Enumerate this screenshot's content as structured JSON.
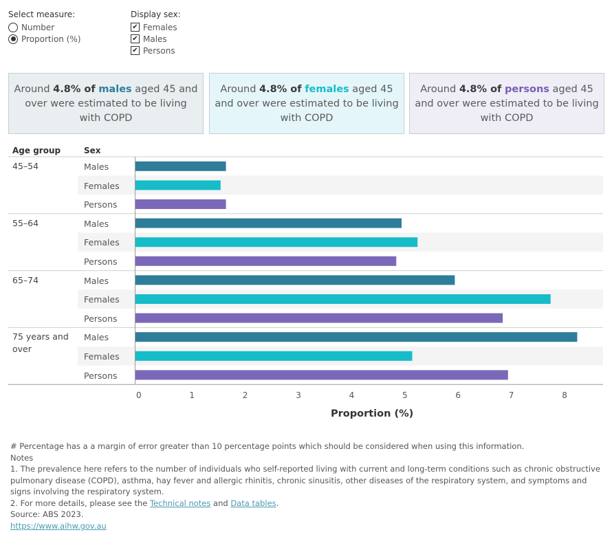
{
  "controls": {
    "measure": {
      "title": "Select measure:",
      "options": [
        {
          "label": "Number",
          "selected": false
        },
        {
          "label": "Proportion (%)",
          "selected": true
        }
      ]
    },
    "sex": {
      "title": "Display sex:",
      "options": [
        {
          "label": "Females",
          "checked": true
        },
        {
          "label": "Males",
          "checked": true
        },
        {
          "label": "Persons",
          "checked": true
        }
      ]
    }
  },
  "cards": [
    {
      "prefix": "Around ",
      "value": "4.8% of",
      "group": "males",
      "suffix": " aged 45 and over were estimated to be living with COPD",
      "bg": "#e9eef1",
      "accent": "#2e7d99"
    },
    {
      "prefix": "Around ",
      "value": "4.8% of",
      "group": "females",
      "suffix": " aged 45 and over were estimated to be living with COPD",
      "bg": "#e4f6f9",
      "accent": "#17bcc9"
    },
    {
      "prefix": "Around ",
      "value": "4.8% of",
      "group": "persons",
      "suffix": " aged 45 and over were estimated to be living with COPD",
      "bg": "#efedf6",
      "accent": "#7b5db0"
    }
  ],
  "table_headers": {
    "age_group": "Age group",
    "sex": "Sex"
  },
  "chart_data": {
    "type": "bar",
    "orientation": "horizontal",
    "xlabel": "Proportion (%)",
    "xlim": [
      0,
      8.8
    ],
    "x_ticks": [
      0,
      1,
      2,
      3,
      4,
      5,
      6,
      7,
      8
    ],
    "colors": {
      "Males": "#2e7d99",
      "Females": "#17bcc9",
      "Persons": "#7b68b8"
    },
    "groups": [
      {
        "age_group": "45–54",
        "bars": [
          {
            "sex": "Males",
            "value": 1.7
          },
          {
            "sex": "Females",
            "value": 1.6
          },
          {
            "sex": "Persons",
            "value": 1.7
          }
        ]
      },
      {
        "age_group": "55–64",
        "bars": [
          {
            "sex": "Males",
            "value": 5.0
          },
          {
            "sex": "Females",
            "value": 5.3
          },
          {
            "sex": "Persons",
            "value": 4.9
          }
        ]
      },
      {
        "age_group": "65–74",
        "bars": [
          {
            "sex": "Males",
            "value": 6.0
          },
          {
            "sex": "Females",
            "value": 7.8
          },
          {
            "sex": "Persons",
            "value": 6.9
          }
        ]
      },
      {
        "age_group": "75 years and over",
        "bars": [
          {
            "sex": "Males",
            "value": 8.3
          },
          {
            "sex": "Females",
            "value": 5.2
          },
          {
            "sex": "Persons",
            "value": 7.0
          }
        ]
      }
    ]
  },
  "notes": {
    "margin_note": "# Percentage has a a margin of error greater than 10 percentage points which should be considered when using this information.",
    "heading": "Notes",
    "note1": "1. The prevalence here refers to the number of individuals who self-reported living with current and long-term conditions such as chronic obstructive pulmonary disease (COPD), asthma, hay fever and allergic rhinitis, chronic sinusitis, other diseases of the respiratory system, and symptoms and signs involving the respiratory system.",
    "note2_prefix": "2. For more details, please see the ",
    "link_technical": "Technical notes",
    "note2_and": " and ",
    "link_data": "Data tables",
    "note2_suffix": ".",
    "source": "Source: ABS 2023.",
    "url": "https://www.aihw.gov.au"
  }
}
